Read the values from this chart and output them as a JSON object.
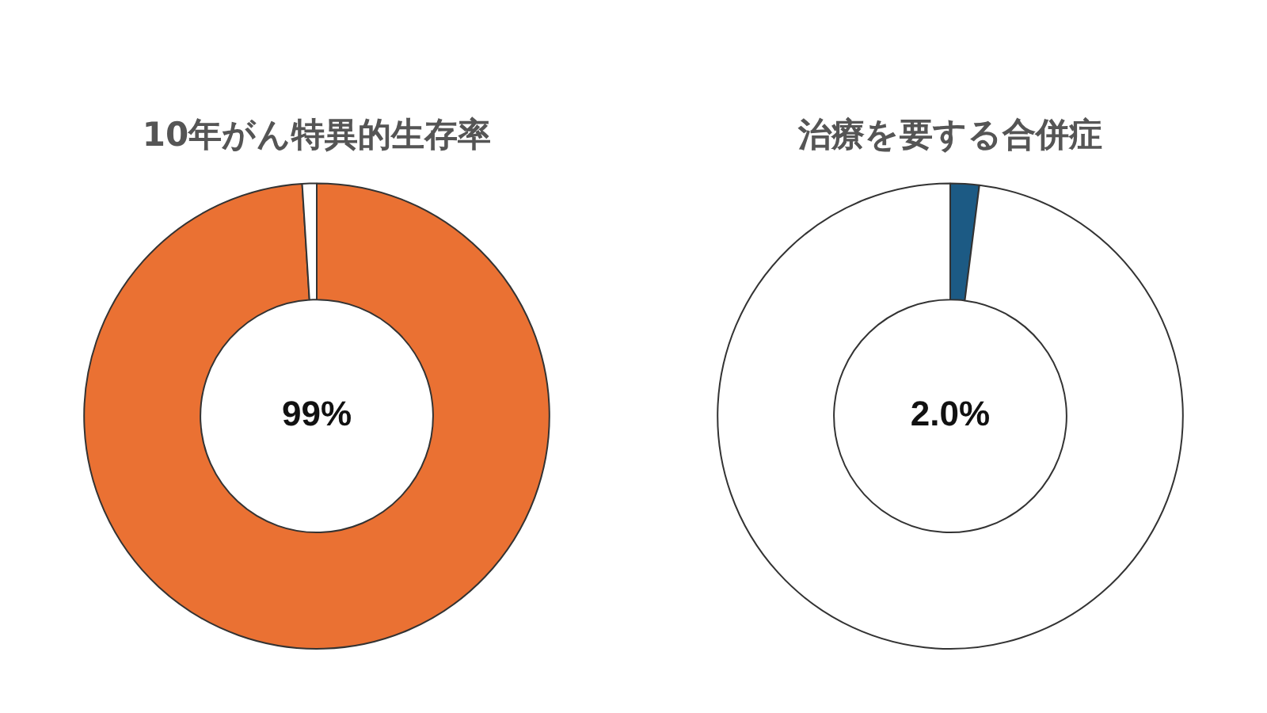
{
  "chart_data": [
    {
      "type": "donut",
      "title": "10年がん特異的生存率",
      "categories": [
        null,
        null
      ],
      "values": [
        99,
        1
      ],
      "colors": [
        "#ea7133",
        "#ffffff"
      ],
      "annotations": [
        "99%"
      ],
      "legend": false
    },
    {
      "type": "donut",
      "title": "治療を要する合併症",
      "categories": [
        null,
        null
      ],
      "values": [
        2.0,
        98.0
      ],
      "colors": [
        "#1c5a84",
        "#ffffff"
      ],
      "annotations": [
        "2.0%"
      ],
      "legend": false
    }
  ]
}
